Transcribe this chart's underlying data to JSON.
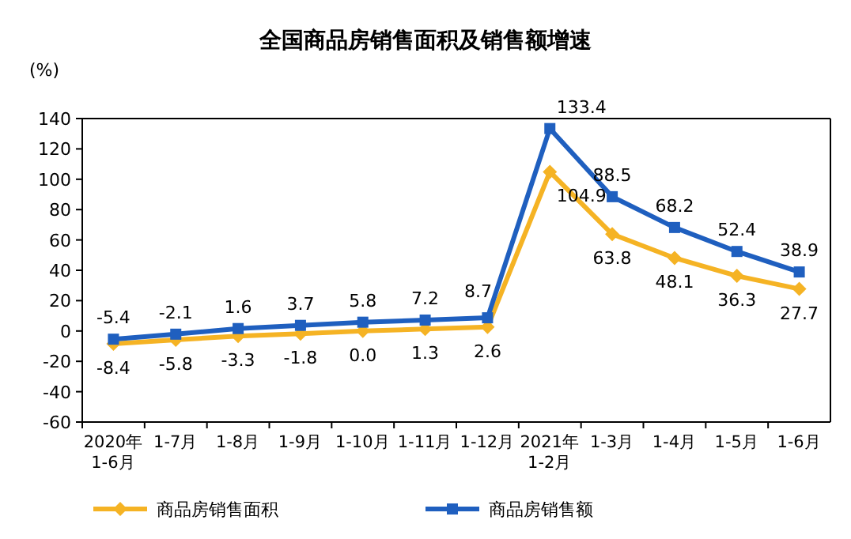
{
  "chart_data": {
    "type": "line",
    "title": "全国商品房销售面积及销售额增速",
    "ylabel": "(%)",
    "categories": [
      "2020年\n1-6月",
      "1-7月",
      "1-8月",
      "1-9月",
      "1-10月",
      "1-11月",
      "1-12月",
      "2021年\n1-2月",
      "1-3月",
      "1-4月",
      "1-5月",
      "1-6月"
    ],
    "series": [
      {
        "name": "商品房销售面积",
        "color": "#f5b324",
        "marker": "diamond",
        "values": [
          -8.4,
          -5.8,
          -3.3,
          -1.8,
          0.0,
          1.3,
          2.6,
          104.9,
          63.8,
          48.1,
          36.3,
          27.7
        ],
        "value_labels": [
          "-8.4",
          "-5.8",
          "-3.3",
          "-1.8",
          "0.0",
          "1.3",
          "2.6",
          "104.9",
          "63.8",
          "48.1",
          "36.3",
          "27.7"
        ]
      },
      {
        "name": "商品房销售额",
        "color": "#1f5fbf",
        "marker": "square",
        "values": [
          -5.4,
          -2.1,
          1.6,
          3.7,
          5.8,
          7.2,
          8.7,
          133.4,
          88.5,
          68.2,
          52.4,
          38.9
        ]
      }
    ],
    "ylim": [
      -60,
      140
    ],
    "yticks": [
      -60,
      -40,
      -20,
      0,
      20,
      40,
      60,
      80,
      100,
      120,
      140
    ],
    "data_labels": true,
    "legend": "bottom",
    "grid": false
  }
}
